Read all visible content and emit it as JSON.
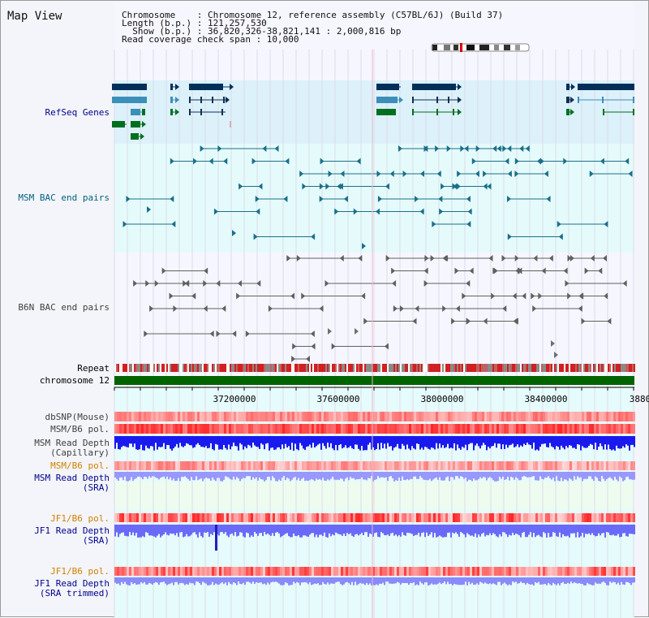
{
  "page_title": "Map View",
  "info": {
    "line1": "Chromosome    : Chromosome 12, reference assembly (C57BL/6J) (Build 37)",
    "line2": "Length (b.p.) : 121,257,530",
    "line3": "  Show (b.p.) : 36,820,326-38,821,141 : 2,000,816 bp",
    "line4": "Read coverage check span : 10,000"
  },
  "tracks": {
    "refseq": "RefSeq Genes",
    "msm_bac": "MSM BAC end pairs",
    "b6n_bac": "B6N BAC end pairs",
    "repeat": "Repeat",
    "chromosome": "chromosome 12",
    "dbsnp": "dbSNP(Mouse)",
    "msm_b6_pol_1": "MSM/B6 pol.",
    "msm_depth_cap_1": "MSM Read Depth",
    "msm_depth_cap_2": "(Capillary)",
    "msm_b6_pol_2": "MSM/B6 pol.",
    "msm_depth_sra_1": "MSM Read Depth",
    "msm_depth_sra_2": "(SRA)",
    "jf1_b6_pol_1": "JF1/B6 pol.",
    "jf1_depth_sra_1": "JF1 Read Depth",
    "jf1_depth_sra_2": "(SRA)",
    "jf1_b6_pol_2": "JF1/B6 pol.",
    "jf1_depth_trim_1": "JF1 Read Depth",
    "jf1_depth_trim_2": "(SRA trimmed)"
  },
  "axis": {
    "ticks": [
      "37200000",
      "37600000",
      "38000000",
      "38400000",
      "3880"
    ]
  },
  "colors": {
    "label_blue": "#00008b",
    "label_teal": "#006080",
    "label_gray": "#404040",
    "label_orange": "#d08000",
    "refseq_bg": "#ddf2fb",
    "bac_bg": "#e6fbfb",
    "depth_blue": "#1a1aff",
    "depth_light": "#8888ff",
    "chrom_green": "#006400"
  }
}
